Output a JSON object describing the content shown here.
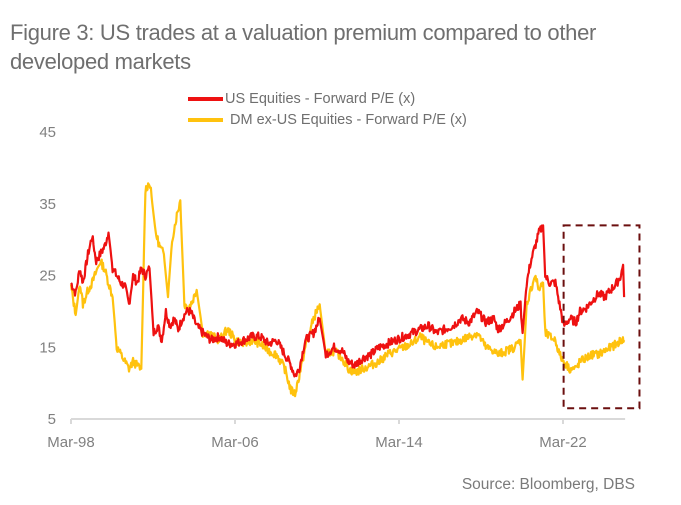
{
  "title": "Figure 3: US trades at a valuation premium compared to other developed markets",
  "source": "Source: Bloomberg, DBS",
  "colors": {
    "us": "#ee1111",
    "dm": "#ffc20e",
    "box": "#6b0f0f",
    "axis": "#d9d9d9"
  },
  "chart_data": {
    "type": "line",
    "title": "Figure 3: US trades at a valuation premium compared to other developed markets",
    "xlabel": "",
    "ylabel": "",
    "ylim": [
      5,
      45
    ],
    "yticks": [
      5,
      15,
      25,
      35,
      45
    ],
    "yticklabels": [
      "5",
      "15",
      "25",
      "35",
      "45"
    ],
    "xlim": [
      1998.17,
      2025.2
    ],
    "xticks": [
      1998.17,
      2006.17,
      2014.17,
      2022.17
    ],
    "xticklabels": [
      "Mar-98",
      "Mar-06",
      "Mar-14",
      "Mar-22"
    ],
    "grid": false,
    "legend_position": "top-center",
    "annotation": "dashed box highlighting Mar-22 to latest",
    "annotation_range": {
      "x": [
        2022.2,
        2025.9
      ],
      "y": [
        6.5,
        32
      ]
    },
    "series": [
      {
        "name": "US Equities - Forward P/E (x)",
        "color": "#ee1111",
        "x": [
          1998.17,
          1998.4,
          1998.6,
          1998.75,
          1999.0,
          1999.2,
          1999.4,
          1999.6,
          1999.8,
          2000.0,
          2000.2,
          2000.4,
          2000.6,
          2000.8,
          2001.0,
          2001.2,
          2001.4,
          2001.6,
          2001.8,
          2002.0,
          2002.2,
          2002.4,
          2002.6,
          2002.8,
          2003.0,
          2003.2,
          2003.4,
          2003.6,
          2003.8,
          2004.0,
          2004.3,
          2004.6,
          2005.0,
          2005.4,
          2005.8,
          2006.2,
          2006.6,
          2007.0,
          2007.4,
          2007.8,
          2008.2,
          2008.6,
          2008.9,
          2009.1,
          2009.3,
          2009.6,
          2010.0,
          2010.3,
          2010.6,
          2011.0,
          2011.4,
          2011.7,
          2012.0,
          2012.4,
          2012.8,
          2013.2,
          2013.6,
          2014.0,
          2014.4,
          2014.8,
          2015.2,
          2015.6,
          2016.0,
          2016.4,
          2016.8,
          2017.2,
          2017.6,
          2018.0,
          2018.4,
          2018.8,
          2019.0,
          2019.4,
          2019.8,
          2020.1,
          2020.2,
          2020.4,
          2020.6,
          2020.8,
          2021.0,
          2021.2,
          2021.3,
          2021.5,
          2021.8,
          2022.0,
          2022.2,
          2022.5,
          2022.8,
          2023.0,
          2023.3,
          2023.6,
          2023.9,
          2024.2,
          2024.5,
          2024.8,
          2025.0,
          2025.1,
          2025.15
        ],
        "values": [
          24,
          22.5,
          26,
          24,
          28,
          30.5,
          27,
          28,
          29,
          31,
          26,
          25,
          24,
          23.5,
          21,
          25,
          24,
          26,
          25,
          26,
          17,
          18,
          16,
          20,
          18,
          19,
          17.5,
          19,
          20,
          20,
          18,
          17,
          16,
          16.5,
          15.5,
          15.5,
          16,
          16.5,
          16.5,
          15.5,
          16,
          14,
          12.5,
          11,
          12,
          16,
          17,
          19,
          14,
          15,
          14.5,
          13,
          12.5,
          13.5,
          14,
          15,
          15.5,
          16,
          16.5,
          17,
          17.5,
          18,
          17,
          17.5,
          18,
          19,
          18.5,
          20,
          18.5,
          19,
          17.5,
          18.5,
          20,
          21,
          17,
          24,
          27,
          29,
          31,
          32,
          25,
          24,
          24,
          21,
          18,
          19,
          18.5,
          20,
          20.5,
          21.5,
          22.5,
          22,
          23,
          24,
          25,
          26.5,
          22
        ]
      },
      {
        "name": "DM ex-US Equities - Forward P/E (x)",
        "color": "#ffc20e",
        "x": [
          1998.17,
          1998.4,
          1998.6,
          1998.75,
          1999.0,
          1999.2,
          1999.4,
          1999.6,
          1999.8,
          2000.0,
          2000.2,
          2000.4,
          2000.6,
          2000.8,
          2001.0,
          2001.2,
          2001.4,
          2001.6,
          2001.8,
          2002.0,
          2002.1,
          2002.3,
          2002.5,
          2002.7,
          2002.9,
          2003.1,
          2003.3,
          2003.5,
          2003.7,
          2003.9,
          2004.1,
          2004.3,
          2004.6,
          2004.9,
          2005.1,
          2005.4,
          2005.8,
          2006.2,
          2006.6,
          2007.0,
          2007.4,
          2007.8,
          2008.2,
          2008.6,
          2008.9,
          2009.1,
          2009.3,
          2009.6,
          2010.0,
          2010.3,
          2010.6,
          2011.0,
          2011.4,
          2011.7,
          2012.0,
          2012.4,
          2012.8,
          2013.2,
          2013.6,
          2014.0,
          2014.4,
          2014.8,
          2015.2,
          2015.6,
          2016.0,
          2016.4,
          2016.8,
          2017.2,
          2017.6,
          2018.0,
          2018.4,
          2018.8,
          2019.0,
          2019.4,
          2019.8,
          2020.1,
          2020.2,
          2020.4,
          2020.6,
          2020.8,
          2021.0,
          2021.2,
          2021.3,
          2021.5,
          2021.8,
          2022.0,
          2022.2,
          2022.5,
          2022.8,
          2023.0,
          2023.3,
          2023.6,
          2023.9,
          2024.2,
          2024.5,
          2024.8,
          2025.0,
          2025.15
        ],
        "values": [
          23.5,
          19.5,
          24,
          21,
          23,
          24,
          25.5,
          27,
          26,
          24,
          22,
          15,
          14,
          13,
          12,
          13,
          12.5,
          12,
          37,
          38,
          36,
          31,
          29,
          28,
          22,
          30,
          33,
          35.5,
          21,
          20.5,
          21.5,
          23,
          17,
          17,
          16.5,
          16,
          17.5,
          16,
          15.5,
          16,
          15.5,
          14.5,
          14,
          12,
          9,
          8.5,
          11,
          15,
          19,
          21,
          14,
          14.5,
          13.5,
          12,
          11.5,
          12,
          12.5,
          13,
          14,
          14.5,
          15,
          15.5,
          16.5,
          15.5,
          15,
          15.5,
          15.5,
          16,
          16.5,
          17,
          15,
          14.5,
          14,
          14.5,
          15,
          16,
          10.5,
          21,
          23,
          25,
          23,
          24,
          17,
          16.5,
          16,
          14,
          13,
          12,
          12,
          13,
          13.5,
          14,
          14,
          14.5,
          15,
          15.5,
          16,
          16
        ]
      }
    ]
  }
}
